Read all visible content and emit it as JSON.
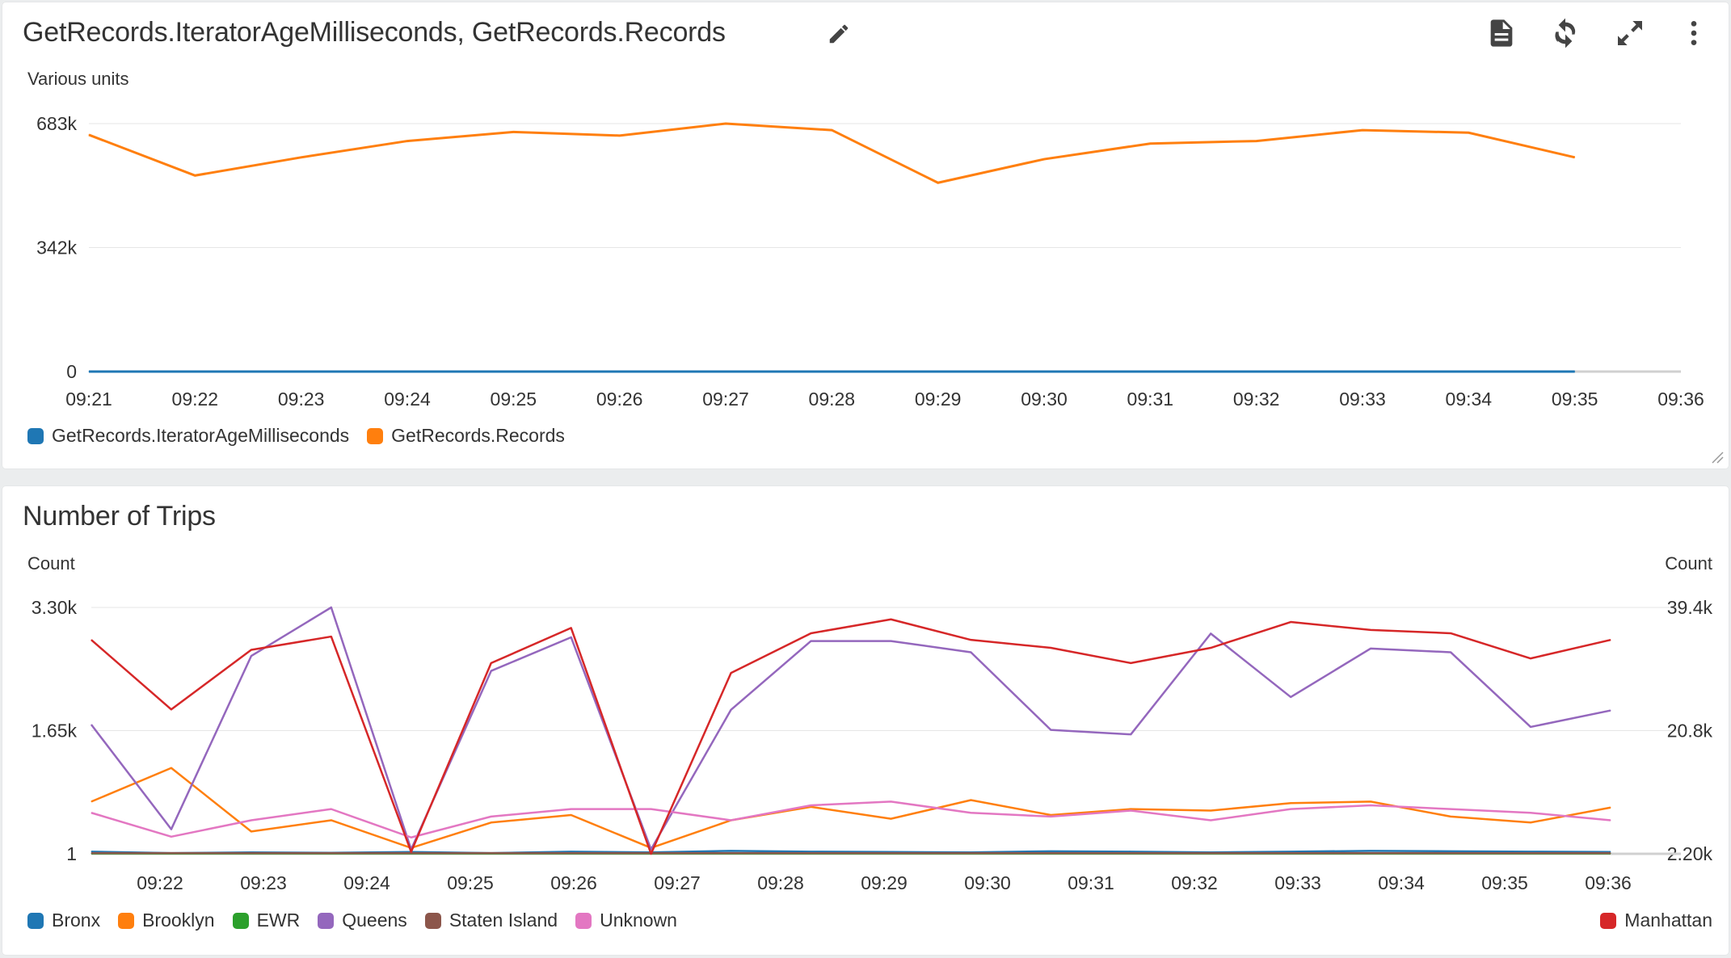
{
  "panel1": {
    "title": "GetRecords.IteratorAgeMilliseconds, GetRecords.Records",
    "icons": [
      "edit-icon",
      "document-icon",
      "refresh-icon",
      "expand-icon",
      "more-vertical-icon"
    ]
  },
  "panel2": {
    "title": "Number of Trips"
  },
  "chart_data": [
    {
      "type": "line",
      "title": "GetRecords.IteratorAgeMilliseconds, GetRecords.Records",
      "ylabel": "Various units",
      "yticks": [
        "683k",
        "342k",
        "0"
      ],
      "ylim": [
        0,
        683000
      ],
      "x": [
        "09:21",
        "09:22",
        "09:23",
        "09:24",
        "09:25",
        "09:26",
        "09:27",
        "09:28",
        "09:29",
        "09:30",
        "09:31",
        "09:32",
        "09:33",
        "09:34",
        "09:35"
      ],
      "xticks": [
        "09:21",
        "09:22",
        "09:23",
        "09:24",
        "09:25",
        "09:26",
        "09:27",
        "09:28",
        "09:29",
        "09:30",
        "09:31",
        "09:32",
        "09:33",
        "09:34",
        "09:35",
        "09:36"
      ],
      "series": [
        {
          "name": "GetRecords.IteratorAgeMilliseconds",
          "color": "#1f77b4",
          "values": [
            0,
            0,
            0,
            0,
            0,
            0,
            0,
            0,
            0,
            0,
            0,
            0,
            0,
            0,
            0
          ]
        },
        {
          "name": "GetRecords.Records",
          "color": "#ff7f0e",
          "values": [
            652000,
            540000,
            590000,
            635000,
            660000,
            650000,
            683000,
            665000,
            520000,
            585000,
            628000,
            635000,
            665000,
            658000,
            590000
          ]
        }
      ],
      "grid": true,
      "legend": "bottom-left"
    },
    {
      "type": "line",
      "title": "Number of Trips",
      "ylabel": "Count",
      "ylabel_right": "Count",
      "yticks_left": [
        "3.30k",
        "1.65k",
        "1"
      ],
      "yticks_right": [
        "39.4k",
        "20.8k",
        "2.20k"
      ],
      "ylim": [
        1,
        3300
      ],
      "ylim_right": [
        2200,
        39400
      ],
      "xticks": [
        "09:22",
        "09:23",
        "09:24",
        "09:25",
        "09:26",
        "09:27",
        "09:28",
        "09:29",
        "09:30",
        "09:31",
        "09:32",
        "09:33",
        "09:34",
        "09:35",
        "09:36"
      ],
      "series": [
        {
          "name": "Bronx",
          "color": "#1f77b4",
          "axis": "left",
          "values": [
            30,
            10,
            20,
            15,
            25,
            10,
            30,
            20,
            40,
            30,
            25,
            20,
            35,
            30,
            20,
            30,
            40,
            35,
            30,
            25
          ]
        },
        {
          "name": "Brooklyn",
          "color": "#ff7f0e",
          "axis": "left",
          "values": [
            700,
            1150,
            300,
            450,
            80,
            420,
            520,
            80,
            450,
            630,
            470,
            720,
            520,
            600,
            580,
            680,
            700,
            500,
            420,
            620
          ]
        },
        {
          "name": "EWR",
          "color": "#2ca02c",
          "axis": "left",
          "values": [
            5,
            5,
            5,
            5,
            5,
            5,
            5,
            5,
            5,
            5,
            5,
            5,
            5,
            5,
            5,
            5,
            5,
            5,
            5,
            5
          ]
        },
        {
          "name": "Queens",
          "color": "#9467bd",
          "axis": "left",
          "values": [
            1730,
            330,
            2650,
            3300,
            60,
            2450,
            2900,
            60,
            1930,
            2850,
            2850,
            2700,
            1660,
            1600,
            2950,
            2100,
            2750,
            2700,
            1700,
            1920
          ]
        },
        {
          "name": "Staten Island",
          "color": "#8c564b",
          "axis": "left",
          "values": [
            10,
            10,
            10,
            10,
            10,
            10,
            10,
            10,
            10,
            10,
            10,
            10,
            10,
            10,
            10,
            10,
            10,
            10,
            10,
            10
          ]
        },
        {
          "name": "Unknown",
          "color": "#e377c2",
          "axis": "left",
          "values": [
            550,
            230,
            450,
            600,
            220,
            500,
            600,
            600,
            450,
            650,
            700,
            550,
            500,
            580,
            450,
            600,
            650,
            600,
            550,
            450
          ]
        },
        {
          "name": "Manhattan",
          "color": "#d62728",
          "axis": "right",
          "values": [
            34500,
            24000,
            33000,
            35000,
            2500,
            31000,
            36300,
            2200,
            29500,
            35500,
            37600,
            34500,
            33300,
            31000,
            33300,
            37200,
            36000,
            35500,
            31700,
            34500
          ]
        }
      ],
      "grid": true,
      "legend": "bottom"
    }
  ]
}
